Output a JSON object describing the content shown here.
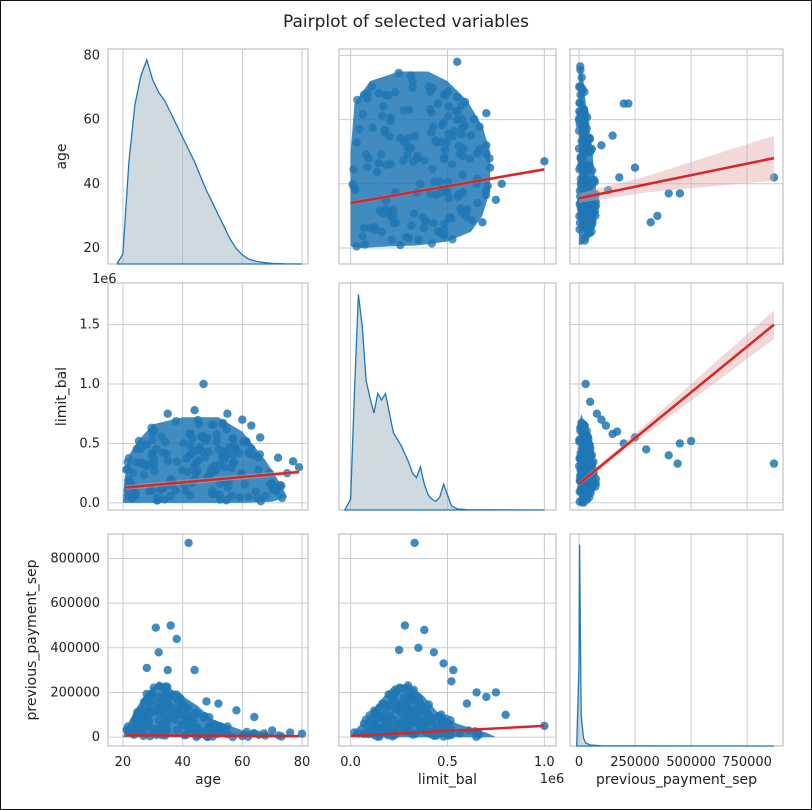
{
  "title": "Pairplot of selected variables",
  "chart_data": {
    "type": "scatter",
    "variables": [
      "age",
      "limit_bal",
      "previous_payment_sep"
    ],
    "grid": true,
    "axes": {
      "age": {
        "label": "age",
        "range": [
          15,
          82
        ],
        "ticks": [
          20,
          40,
          60,
          80
        ],
        "tick_labels": [
          "20",
          "40",
          "60",
          "80"
        ]
      },
      "limit_bal": {
        "label": "limit_bal",
        "range": [
          -0.06,
          1.06
        ],
        "ticks": [
          0.0,
          0.5,
          1.0
        ],
        "tick_labels": [
          "0.0",
          "0.5",
          "1.0"
        ],
        "y_ticks": [
          0.0,
          0.5,
          1.0,
          1.5
        ],
        "y_tick_labels": [
          "0.0",
          "0.5",
          "1.0",
          "1.5"
        ],
        "y_range": [
          -0.06,
          1.85
        ],
        "offset_text": "1e6"
      },
      "previous_payment_sep": {
        "label": "previous_payment_sep",
        "range": [
          -40000,
          910000
        ],
        "ticks": [
          0,
          250000,
          500000,
          750000
        ],
        "tick_labels": [
          "0",
          "250000",
          "500000",
          "750000"
        ],
        "y_ticks": [
          0,
          200000,
          400000,
          600000,
          800000
        ],
        "y_tick_labels": [
          "0",
          "200000",
          "400000",
          "600000",
          "800000"
        ]
      }
    },
    "diagonal_kde": {
      "age": {
        "x": [
          18,
          20,
          22,
          24,
          26,
          28,
          30,
          32,
          34,
          36,
          38,
          40,
          42,
          44,
          46,
          48,
          50,
          52,
          54,
          56,
          58,
          60,
          62,
          64,
          66,
          68,
          70,
          74,
          80
        ],
        "density": [
          0.0,
          0.05,
          0.5,
          0.78,
          0.92,
          1.0,
          0.9,
          0.84,
          0.8,
          0.74,
          0.68,
          0.62,
          0.56,
          0.5,
          0.43,
          0.36,
          0.3,
          0.24,
          0.18,
          0.12,
          0.075,
          0.045,
          0.025,
          0.015,
          0.01,
          0.006,
          0.003,
          0.001,
          0.0
        ]
      },
      "limit_bal": {
        "x": [
          -0.03,
          0.0,
          0.02,
          0.04,
          0.06,
          0.08,
          0.1,
          0.12,
          0.14,
          0.16,
          0.18,
          0.2,
          0.22,
          0.24,
          0.26,
          0.28,
          0.3,
          0.32,
          0.34,
          0.36,
          0.38,
          0.4,
          0.42,
          0.44,
          0.46,
          0.48,
          0.5,
          0.52,
          0.55,
          0.6,
          0.7,
          1.0
        ],
        "density": [
          0.0,
          0.05,
          0.55,
          1.0,
          0.85,
          0.6,
          0.52,
          0.45,
          0.54,
          0.51,
          0.54,
          0.45,
          0.36,
          0.33,
          0.3,
          0.26,
          0.22,
          0.17,
          0.15,
          0.2,
          0.12,
          0.07,
          0.05,
          0.04,
          0.06,
          0.12,
          0.07,
          0.02,
          0.005,
          0.002,
          0.001,
          0.0
        ]
      },
      "previous_payment_sep": {
        "x": [
          -10000,
          0,
          3000,
          6000,
          10000,
          20000,
          30000,
          50000,
          100000,
          870000
        ],
        "density": [
          0.0,
          0.4,
          1.0,
          0.6,
          0.15,
          0.04,
          0.015,
          0.005,
          0.001,
          0.0
        ]
      }
    },
    "cells": [
      {
        "row": 0,
        "col": 1,
        "x": "limit_bal",
        "y": "age",
        "fit": [
          [
            0.0,
            34
          ],
          [
            1.0,
            44.5
          ]
        ],
        "ci_width": 0.5,
        "blob": [
          [
            0.0,
            20.5
          ],
          [
            0.05,
            20
          ],
          [
            0.2,
            20.5
          ],
          [
            0.35,
            20.8
          ],
          [
            0.5,
            22
          ],
          [
            0.62,
            25
          ],
          [
            0.68,
            30
          ],
          [
            0.72,
            38
          ],
          [
            0.72,
            50
          ],
          [
            0.68,
            58
          ],
          [
            0.6,
            66
          ],
          [
            0.5,
            72
          ],
          [
            0.4,
            75
          ],
          [
            0.25,
            75
          ],
          [
            0.1,
            72
          ],
          [
            0.02,
            65
          ],
          [
            0.0,
            50
          ]
        ],
        "outliers": [
          [
            0.55,
            78
          ],
          [
            0.32,
            70
          ],
          [
            0.55,
            60
          ],
          [
            0.62,
            55
          ],
          [
            0.7,
            52
          ],
          [
            0.72,
            45
          ],
          [
            0.65,
            40
          ],
          [
            0.75,
            35
          ],
          [
            0.6,
            32
          ],
          [
            0.68,
            28
          ],
          [
            0.55,
            67
          ],
          [
            0.45,
            65
          ],
          [
            1.0,
            47
          ],
          [
            0.78,
            40
          ],
          [
            0.7,
            62
          ]
        ]
      },
      {
        "row": 0,
        "col": 2,
        "x": "previous_payment_sep",
        "y": "age",
        "fit": [
          [
            0,
            35.5
          ],
          [
            870000,
            48
          ]
        ],
        "ci_width": [
          [
            0,
            1.5
          ],
          [
            300000,
            2.5
          ],
          [
            870000,
            7
          ]
        ],
        "blob": [
          [
            0,
            21
          ],
          [
            15000,
            21
          ],
          [
            40000,
            23
          ],
          [
            70000,
            27
          ],
          [
            80000,
            35
          ],
          [
            60000,
            50
          ],
          [
            35000,
            62
          ],
          [
            20000,
            72
          ],
          [
            5000,
            78
          ],
          [
            0,
            70
          ]
        ],
        "outliers": [
          [
            150000,
            55
          ],
          [
            200000,
            65
          ],
          [
            220000,
            65
          ],
          [
            180000,
            42
          ],
          [
            250000,
            45
          ],
          [
            350000,
            30
          ],
          [
            320000,
            28
          ],
          [
            400000,
            37
          ],
          [
            450000,
            37
          ],
          [
            870000,
            42
          ],
          [
            130000,
            38
          ],
          [
            100000,
            52
          ]
        ]
      },
      {
        "row": 1,
        "col": 0,
        "x": "age",
        "y": "limit_bal",
        "fit": [
          [
            21,
            0.13
          ],
          [
            79,
            0.26
          ]
        ],
        "ci_width": 0.02,
        "blob": [
          [
            20,
            0.0
          ],
          [
            30,
            0.0
          ],
          [
            45,
            0.0
          ],
          [
            60,
            0.0
          ],
          [
            70,
            0.01
          ],
          [
            75,
            0.05
          ],
          [
            73,
            0.15
          ],
          [
            68,
            0.35
          ],
          [
            60,
            0.6
          ],
          [
            52,
            0.72
          ],
          [
            40,
            0.72
          ],
          [
            30,
            0.66
          ],
          [
            25,
            0.52
          ],
          [
            22,
            0.4
          ],
          [
            20.5,
            0.2
          ]
        ],
        "outliers": [
          [
            47,
            1.0
          ],
          [
            55,
            0.75
          ],
          [
            60,
            0.7
          ],
          [
            63,
            0.65
          ],
          [
            66,
            0.55
          ],
          [
            72,
            0.38
          ],
          [
            77,
            0.35
          ],
          [
            79,
            0.3
          ],
          [
            75,
            0.25
          ],
          [
            35,
            0.75
          ],
          [
            44,
            0.78
          ],
          [
            58,
            0.45
          ],
          [
            62,
            0.42
          ]
        ]
      },
      {
        "row": 1,
        "col": 2,
        "x": "previous_payment_sep",
        "y": "limit_bal",
        "fit": [
          [
            0,
            0.16
          ],
          [
            870000,
            1.5
          ]
        ],
        "ci_width": [
          [
            0,
            0.02
          ],
          [
            200000,
            0.03
          ],
          [
            870000,
            0.12
          ]
        ],
        "blob": [
          [
            0,
            0.0
          ],
          [
            20000,
            0.0
          ],
          [
            50000,
            0.05
          ],
          [
            80000,
            0.15
          ],
          [
            60000,
            0.4
          ],
          [
            30000,
            0.65
          ],
          [
            10000,
            0.75
          ],
          [
            0,
            0.65
          ]
        ],
        "outliers": [
          [
            30000,
            1.0
          ],
          [
            50000,
            0.85
          ],
          [
            80000,
            0.75
          ],
          [
            100000,
            0.7
          ],
          [
            150000,
            0.58
          ],
          [
            200000,
            0.5
          ],
          [
            250000,
            0.55
          ],
          [
            300000,
            0.45
          ],
          [
            400000,
            0.4
          ],
          [
            450000,
            0.5
          ],
          [
            500000,
            0.52
          ],
          [
            440000,
            0.33
          ],
          [
            870000,
            0.33
          ],
          [
            120000,
            0.65
          ],
          [
            170000,
            0.6
          ]
        ]
      },
      {
        "row": 2,
        "col": 0,
        "x": "age",
        "y": "previous_payment_sep",
        "fit": [
          [
            21,
            8000
          ],
          [
            79,
            4000
          ]
        ],
        "ci_width": 3000,
        "blob": [
          [
            20,
            0
          ],
          [
            40,
            0
          ],
          [
            60,
            0
          ],
          [
            75,
            0
          ],
          [
            70,
            15000
          ],
          [
            60,
            30000
          ],
          [
            50,
            80000
          ],
          [
            45,
            140000
          ],
          [
            38,
            200000
          ],
          [
            32,
            250000
          ],
          [
            28,
            200000
          ],
          [
            24,
            120000
          ],
          [
            21,
            40000
          ]
        ],
        "outliers": [
          [
            42,
            870000
          ],
          [
            36,
            500000
          ],
          [
            31,
            490000
          ],
          [
            38,
            440000
          ],
          [
            44,
            300000
          ],
          [
            35,
            300000
          ],
          [
            28,
            310000
          ],
          [
            48,
            160000
          ],
          [
            52,
            150000
          ],
          [
            58,
            120000
          ],
          [
            64,
            90000
          ],
          [
            70,
            30000
          ],
          [
            76,
            20000
          ],
          [
            80,
            15000
          ],
          [
            32,
            380000
          ]
        ]
      },
      {
        "row": 2,
        "col": 1,
        "x": "limit_bal",
        "y": "previous_payment_sep",
        "fit": [
          [
            0.0,
            5000
          ],
          [
            1.0,
            50000
          ]
        ],
        "ci_width": 3000,
        "blob": [
          [
            0.0,
            0
          ],
          [
            0.3,
            0
          ],
          [
            0.6,
            0
          ],
          [
            0.75,
            0
          ],
          [
            0.7,
            20000
          ],
          [
            0.55,
            60000
          ],
          [
            0.45,
            110000
          ],
          [
            0.38,
            180000
          ],
          [
            0.3,
            240000
          ],
          [
            0.22,
            230000
          ],
          [
            0.15,
            160000
          ],
          [
            0.08,
            80000
          ],
          [
            0.02,
            30000
          ]
        ],
        "outliers": [
          [
            0.33,
            870000
          ],
          [
            0.28,
            500000
          ],
          [
            0.38,
            480000
          ],
          [
            0.35,
            400000
          ],
          [
            0.25,
            390000
          ],
          [
            0.43,
            380000
          ],
          [
            0.48,
            330000
          ],
          [
            0.53,
            300000
          ],
          [
            0.52,
            250000
          ],
          [
            0.6,
            150000
          ],
          [
            0.65,
            200000
          ],
          [
            0.7,
            180000
          ],
          [
            0.75,
            200000
          ],
          [
            0.8,
            100000
          ],
          [
            1.0,
            50000
          ]
        ]
      }
    ]
  }
}
